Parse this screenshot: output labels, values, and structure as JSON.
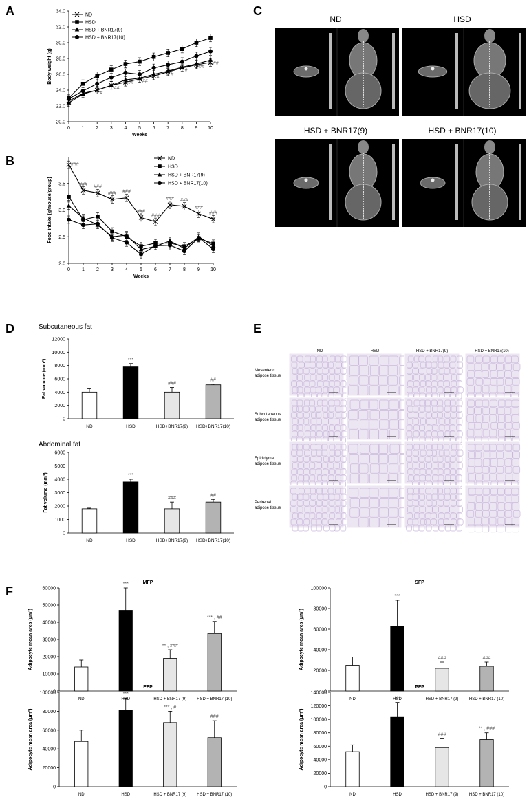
{
  "panel_labels": [
    "A",
    "B",
    "C",
    "D",
    "E",
    "F"
  ],
  "colors": {
    "ND": "#ffffff",
    "HSD": "#000000",
    "BNR9": "#e6e6e6",
    "BNR10": "#b3b3b3",
    "ct_bg": "#000000",
    "tissue": "#c9b8dc"
  },
  "ct_panel": {
    "groups": [
      "ND",
      "HSD",
      "HSD + BNR17(9)",
      "HSD + BNR17(10)"
    ]
  },
  "histology_panel": {
    "columns": [
      "ND",
      "HSD",
      "HSD + BNR17(9)",
      "HSD + BNR17(10)"
    ],
    "rows": [
      "Mesenteric adipose tissue",
      "Subcutaneous adipose tissue",
      "Epididymal adipose tissue",
      "Perirenal adipose tissue"
    ]
  },
  "chart_data": [
    {
      "id": "A",
      "type": "line",
      "xlabel": "Weeks",
      "ylabel": "Body weight (g)",
      "x": [
        0,
        1,
        2,
        3,
        4,
        5,
        6,
        7,
        8,
        9,
        10
      ],
      "xlim": [
        0,
        10
      ],
      "ylim": [
        20.0,
        34.0
      ],
      "yticks": [
        "20.0",
        "22.0",
        "24.0",
        "26.0",
        "28.0",
        "30.0",
        "32.0",
        "34.0"
      ],
      "legend_position": "top-left",
      "series": [
        {
          "name": "ND",
          "marker": "x",
          "values": [
            22.6,
            23.6,
            24.0,
            24.6,
            25.0,
            25.4,
            25.8,
            26.3,
            26.8,
            27.2,
            27.5
          ]
        },
        {
          "name": "HSD",
          "marker": "square",
          "values": [
            23.0,
            24.8,
            25.8,
            26.6,
            27.3,
            27.6,
            28.2,
            28.7,
            29.2,
            30.0,
            30.6
          ]
        },
        {
          "name": "HSD + BNR17(9)",
          "marker": "triangle",
          "values": [
            22.4,
            23.5,
            24.0,
            24.6,
            25.3,
            25.5,
            26.0,
            26.4,
            26.9,
            27.3,
            27.8
          ]
        },
        {
          "name": "HSD + BNR17(10)",
          "marker": "circle",
          "values": [
            22.9,
            23.9,
            24.8,
            25.6,
            26.2,
            26.0,
            26.8,
            27.2,
            27.6,
            28.3,
            28.9
          ]
        }
      ],
      "annotations": [
        "#",
        "##",
        "#",
        "##",
        "##",
        "##",
        "#",
        "#",
        "#",
        "##",
        "##"
      ]
    },
    {
      "id": "B",
      "type": "line",
      "xlabel": "Weeks",
      "ylabel": "Food intake (g/mouse/group)",
      "x": [
        0,
        1,
        2,
        3,
        4,
        5,
        6,
        7,
        8,
        9,
        10
      ],
      "xlim": [
        0,
        10
      ],
      "ylim": [
        2.0,
        4.0
      ],
      "yticks": [
        "2.0",
        "2.5",
        "3.0",
        "3.5"
      ],
      "legend_position": "top-right",
      "series": [
        {
          "name": "ND",
          "marker": "x",
          "values": [
            3.85,
            3.37,
            3.32,
            3.2,
            3.23,
            2.86,
            2.78,
            3.1,
            3.07,
            2.93,
            2.83
          ]
        },
        {
          "name": "HSD",
          "marker": "square",
          "values": [
            3.25,
            2.82,
            2.88,
            2.6,
            2.5,
            2.32,
            2.38,
            2.38,
            2.32,
            2.47,
            2.37
          ]
        },
        {
          "name": "HSD + BNR17(9)",
          "marker": "triangle",
          "values": [
            3.08,
            2.85,
            2.72,
            2.5,
            2.53,
            2.26,
            2.32,
            2.42,
            2.28,
            2.5,
            2.33
          ]
        },
        {
          "name": "HSD + BNR17(10)",
          "marker": "circle",
          "values": [
            2.82,
            2.72,
            2.74,
            2.48,
            2.39,
            2.17,
            2.33,
            2.34,
            2.23,
            2.48,
            2.27
          ]
        }
      ],
      "annotations": [
        "###",
        "###",
        "###",
        "###",
        "###",
        "###",
        "###",
        "###",
        "###",
        "###",
        "###"
      ]
    },
    {
      "id": "D1",
      "type": "bar",
      "title": "Subcutaneous fat",
      "ylabel": "Fat volume (mm³)",
      "categories": [
        "ND",
        "HSD",
        "HSD+BNR17(9)",
        "HSD+BNR17(10)"
      ],
      "values": [
        4000,
        7800,
        4000,
        5100
      ],
      "errors": [
        500,
        500,
        700,
        100
      ],
      "ylim": [
        0,
        12000
      ],
      "yticks": [
        "0",
        "2000",
        "4000",
        "6000",
        "8000",
        "10000",
        "12000"
      ],
      "annotations": [
        "",
        "***",
        "###",
        "##"
      ]
    },
    {
      "id": "D2",
      "type": "bar",
      "title": "Abdominal fat",
      "ylabel": "Fat volume (mm³)",
      "categories": [
        "ND",
        "HSD",
        "HSD+BNR17(9)",
        "HSD+BNR17(10)"
      ],
      "values": [
        1800,
        3800,
        1800,
        2300
      ],
      "errors": [
        50,
        200,
        500,
        200
      ],
      "ylim": [
        0,
        6000
      ],
      "yticks": [
        "0",
        "1000",
        "2000",
        "3000",
        "4000",
        "5000",
        "6000"
      ],
      "annotations": [
        "",
        "***",
        "###",
        "##"
      ]
    },
    {
      "id": "F1",
      "type": "bar",
      "title": "MFP",
      "ylabel": "Adipocyte mean area (μm²)",
      "categories": [
        "ND",
        "HSD",
        "HSD + BNR17 (9)",
        "HSD + BNR17 (10)"
      ],
      "values": [
        14000,
        47000,
        19000,
        33500
      ],
      "errors": [
        4000,
        13000,
        5000,
        7000
      ],
      "ylim": [
        0,
        60000
      ],
      "yticks": [
        "0",
        "10000",
        "20000",
        "30000",
        "40000",
        "50000",
        "60000"
      ],
      "annotations": [
        "",
        "***",
        "** , ###",
        "*** , ##"
      ]
    },
    {
      "id": "F2",
      "type": "bar",
      "title": "SFP",
      "ylabel": "Adipocyte mean area (μm²)",
      "categories": [
        "ND",
        "HSD",
        "HSD + BNR17 (9)",
        "HSD + BNR17 (10)"
      ],
      "values": [
        25000,
        63000,
        22000,
        24000
      ],
      "errors": [
        8000,
        25000,
        6000,
        4000
      ],
      "ylim": [
        0,
        100000
      ],
      "yticks": [
        "0",
        "20000",
        "40000",
        "60000",
        "80000",
        "100000"
      ],
      "annotations": [
        "",
        "***",
        "###",
        "###"
      ]
    },
    {
      "id": "F3",
      "type": "bar",
      "title": "EFP",
      "ylabel": "Adipocyte mean area (μm²)",
      "categories": [
        "ND",
        "HSD",
        "HSD + BNR17 (9)",
        "HSD + BNR17 (10)"
      ],
      "values": [
        48000,
        81000,
        68000,
        52000
      ],
      "errors": [
        12000,
        13000,
        12000,
        18000
      ],
      "ylim": [
        0,
        100000
      ],
      "yticks": [
        "0",
        "20000",
        "40000",
        "60000",
        "80000",
        "100000"
      ],
      "annotations": [
        "",
        "***",
        "*** , #",
        "###"
      ]
    },
    {
      "id": "F4",
      "type": "bar",
      "title": "PFP",
      "ylabel": "Adipocyte mean area (μm²)",
      "categories": [
        "ND",
        "HSD",
        "HSD + BNR17 (9)",
        "HSD + BNR17 (10)"
      ],
      "values": [
        52000,
        103000,
        58000,
        70000
      ],
      "errors": [
        10000,
        22000,
        13000,
        10000
      ],
      "ylim": [
        0,
        140000
      ],
      "yticks": [
        "0",
        "20000",
        "40000",
        "60000",
        "80000",
        "100000",
        "120000",
        "140000"
      ],
      "annotations": [
        "",
        "***",
        "###",
        "** , ###"
      ]
    }
  ]
}
